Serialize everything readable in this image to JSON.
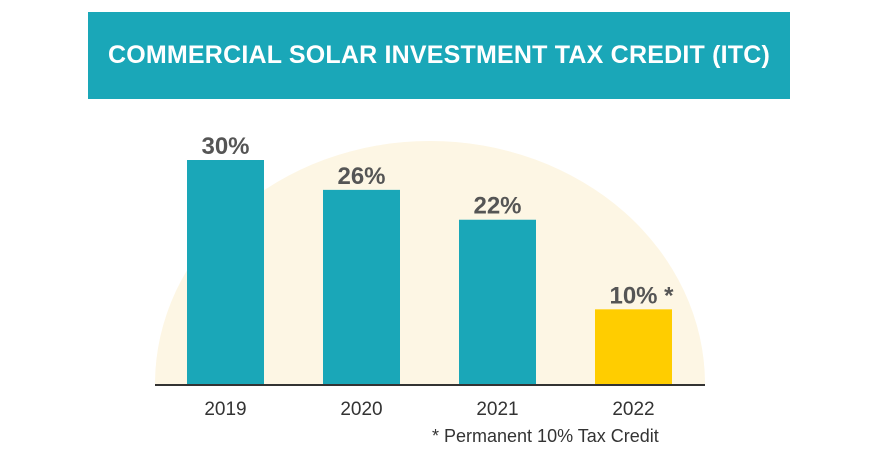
{
  "banner": {
    "title": "COMMERCIAL SOLAR INVESTMENT TAX CREDIT (ITC)"
  },
  "colors": {
    "banner": "#1aa7b8",
    "bar": "#1aa7b8",
    "highlight_bar": "#ffcd00",
    "sun": "#fdf6e4",
    "axis": "#333333",
    "value_text": "#555555"
  },
  "chart_data": {
    "type": "bar",
    "categories": [
      "2019",
      "2020",
      "2021",
      "2022"
    ],
    "values": [
      30,
      26,
      22,
      10
    ],
    "value_labels": [
      "30%",
      "26%",
      "22%",
      "10% *"
    ],
    "highlight_index": 3,
    "title": "COMMERCIAL SOLAR INVESTMENT TAX CREDIT (ITC)",
    "xlabel": "",
    "ylabel": "",
    "ylim": [
      0,
      30
    ],
    "grid": false,
    "legend": "none"
  },
  "footnote": "* Permanent 10% Tax Credit"
}
